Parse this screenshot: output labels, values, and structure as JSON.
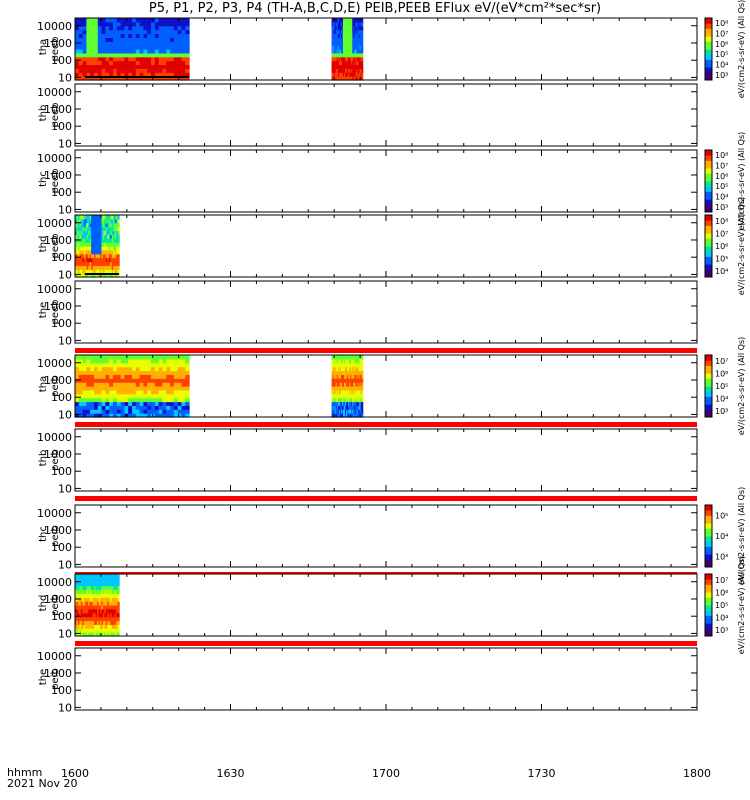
{
  "title": "P5, P1, P2, P3, P4 (TH-A,B,C,D,E) PEIB,PEEB EFlux eV/(eV*cm²*sec*sr)",
  "footer": {
    "label_line1": "hhmm",
    "label_line2": "2021 Nov 20"
  },
  "chart_data": {
    "type": "heatmap",
    "x_axis": {
      "ticks": [
        "1600",
        "1630",
        "1700",
        "1730",
        "1800"
      ],
      "range": [
        "16:00",
        "18:00"
      ]
    },
    "y_scale": "log",
    "y_ticks": [
      "10",
      "100",
      "1000",
      "10000"
    ],
    "panels": [
      {
        "name": "tha peeb",
        "label_line1": "tha",
        "label_line2": "peeb",
        "data_spans": [
          [
            0,
            22
          ],
          [
            49.5,
            55.5
          ]
        ],
        "profile": "electron",
        "bottom_line": true
      },
      {
        "name": "thb peeb",
        "label_line1": "thb",
        "label_line2": "peeb",
        "data_spans": []
      },
      {
        "name": "thc peeb",
        "label_line1": "thc",
        "label_line2": "peeb",
        "data_spans": []
      },
      {
        "name": "thd peeb",
        "label_line1": "thd",
        "label_line2": "peeb",
        "data_spans": [
          [
            0,
            8.5
          ]
        ],
        "profile": "electron-d",
        "bottom_line": true
      },
      {
        "name": "the peeb",
        "label_line1": "the",
        "label_line2": "peeb",
        "data_spans": [],
        "red_band": true
      },
      {
        "name": "tha peib",
        "label_line1": "tha",
        "label_line2": "peib",
        "data_spans": [
          [
            0,
            22
          ],
          [
            49.5,
            55.5
          ]
        ],
        "profile": "ion",
        "red_band": true
      },
      {
        "name": "thb peib",
        "label_line1": "thb",
        "label_line2": "peib",
        "data_spans": [],
        "red_band": true
      },
      {
        "name": "thc peib",
        "label_line1": "thc",
        "label_line2": "peib",
        "data_spans": [],
        "red_band": true
      },
      {
        "name": "thd peib",
        "label_line1": "thd",
        "label_line2": "peib",
        "data_spans": [
          [
            0,
            8.5
          ]
        ],
        "profile": "ion-d",
        "red_band": true
      },
      {
        "name": "the peib",
        "label_line1": "the",
        "label_line2": "peib",
        "data_spans": []
      }
    ],
    "colorbars": [
      {
        "ticks": [
          "10³",
          "10⁴",
          "10⁵",
          "10⁶",
          "10⁷",
          "10⁸"
        ],
        "label": "eV/(cm2-s-sr-eV) (All Qs)"
      },
      {
        "ticks": [
          "10³",
          "10⁴",
          "10⁵",
          "10⁶",
          "10⁷",
          "10⁸"
        ],
        "label": "eV/(cm2-s-sr-eV) (All Qs)"
      },
      {
        "ticks": [
          "10⁴",
          "10⁵",
          "10⁶",
          "10⁷",
          "10⁸"
        ],
        "label": "eV/(cm2-s-sr-eV) (All Qs)"
      },
      {
        "ticks": [
          "10³",
          "10⁴",
          "10⁵",
          "10⁶",
          "10⁷"
        ],
        "label": "eV/(cm2-s-sr-eV) (All Qs)"
      },
      {
        "ticks": [
          "10³",
          "10⁴",
          "10⁵"
        ],
        "label": "eV/(cm2-s-sr-eV) (All Qs)"
      },
      {
        "ticks": [
          "10³",
          "10⁴",
          "10⁵",
          "10⁶",
          "10⁷"
        ],
        "label": "eV/(cm2-s-sr-eV) (All Qs)"
      }
    ],
    "colormap": [
      "#3a006f",
      "#1010c8",
      "#0060ff",
      "#00c8ff",
      "#00e8a0",
      "#60ff30",
      "#e8ff00",
      "#ffb000",
      "#ff4000",
      "#e00000"
    ],
    "band_color": "#ff0000"
  }
}
